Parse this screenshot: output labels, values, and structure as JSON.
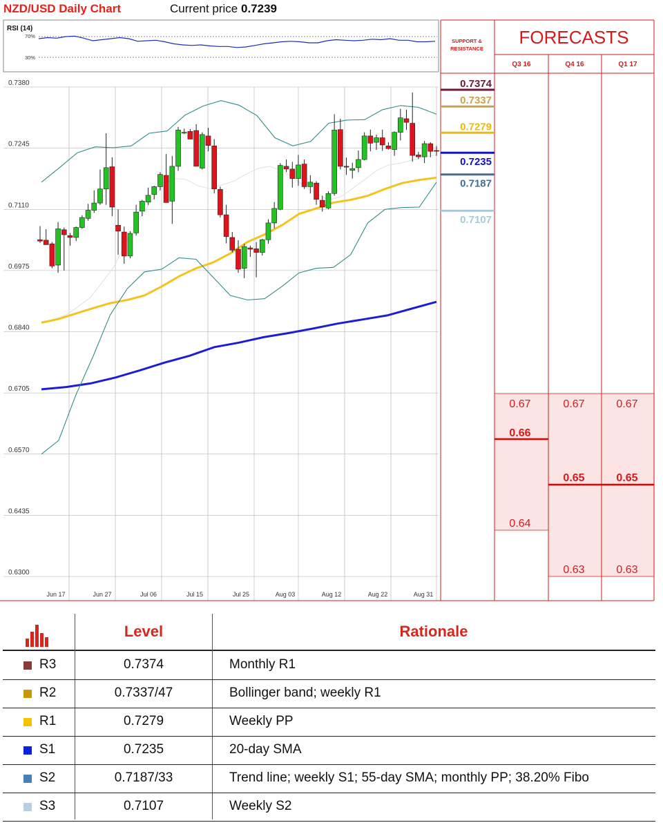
{
  "header": {
    "title": "NZD/USD Daily Chart",
    "current_price_label": "Current price",
    "current_price": "0.7239"
  },
  "rsi": {
    "label": "RSI (14)",
    "levels": [
      "70%",
      "30%"
    ]
  },
  "support_resistance_label": "SUPPORT & RESISTANCE",
  "forecasts": {
    "title": "FORECASTS",
    "columns": [
      "Q3 16",
      "Q4 16",
      "Q1 17"
    ],
    "q3_16": {
      "upper": "0.67",
      "mid": "0.66",
      "lower": "0.64"
    },
    "q4_16": {
      "upper": "0.67",
      "mid": "0.65",
      "lower": "0.63"
    },
    "q1_17": {
      "upper": "0.67",
      "mid": "0.65",
      "lower": "0.63"
    }
  },
  "sr_levels": [
    {
      "value": "0.7374",
      "color": "#6b1a3a"
    },
    {
      "value": "0.7337",
      "color": "#c9a24a"
    },
    {
      "value": "0.7279",
      "color": "#f2b800"
    },
    {
      "value": "0.7235",
      "color": "#1212c8"
    },
    {
      "value": "0.7187",
      "color": "#3d6f98"
    },
    {
      "value": "0.7107",
      "color": "#a9c9da"
    }
  ],
  "chart_data": {
    "type": "candlestick",
    "title": "NZD/USD Daily Chart",
    "y_ticks": [
      "0.7380",
      "0.7245",
      "0.7110",
      "0.6975",
      "0.6840",
      "0.6705",
      "0.6570",
      "0.6435",
      "0.6300"
    ],
    "ylim": [
      0.63,
      0.738
    ],
    "x_ticks": [
      "Jun 17",
      "Jun 27",
      "Jul 06",
      "Jul 15",
      "Jul 25",
      "Aug 03",
      "Aug 12",
      "Aug 22",
      "Aug 31"
    ],
    "grid": true,
    "candles": [
      [
        0.7043,
        0.7073,
        0.7036,
        0.704
      ],
      [
        0.7042,
        0.7066,
        0.7032,
        0.7032
      ],
      [
        0.7034,
        0.7038,
        0.698,
        0.6985
      ],
      [
        0.6987,
        0.7082,
        0.697,
        0.7067
      ],
      [
        0.7065,
        0.707,
        0.6975,
        0.7054
      ],
      [
        0.7052,
        0.7058,
        0.703,
        0.7048
      ],
      [
        0.7048,
        0.7072,
        0.704,
        0.707
      ],
      [
        0.707,
        0.7097,
        0.7067,
        0.7092
      ],
      [
        0.709,
        0.7122,
        0.7085,
        0.7108
      ],
      [
        0.7108,
        0.7152,
        0.7102,
        0.7124
      ],
      [
        0.7124,
        0.7198,
        0.712,
        0.7155
      ],
      [
        0.7155,
        0.7278,
        0.712,
        0.7202
      ],
      [
        0.7204,
        0.7225,
        0.7095,
        0.7115
      ],
      [
        0.7075,
        0.711,
        0.701,
        0.7062
      ],
      [
        0.706,
        0.7072,
        0.699,
        0.7007
      ],
      [
        0.7007,
        0.7062,
        0.7002,
        0.7057
      ],
      [
        0.7058,
        0.712,
        0.7052,
        0.7104
      ],
      [
        0.7106,
        0.7131,
        0.7095,
        0.7128
      ],
      [
        0.7126,
        0.7158,
        0.712,
        0.7141
      ],
      [
        0.7143,
        0.7162,
        0.7132,
        0.716
      ],
      [
        0.716,
        0.7192,
        0.7152,
        0.7187
      ],
      [
        0.7185,
        0.7232,
        0.7125,
        0.7125
      ],
      [
        0.7128,
        0.7228,
        0.7078,
        0.7205
      ],
      [
        0.7205,
        0.7292,
        0.7195,
        0.7285
      ],
      [
        0.728,
        0.7288,
        0.7276,
        0.728
      ],
      [
        0.7282,
        0.7287,
        0.7265,
        0.7265
      ],
      [
        0.7284,
        0.7298,
        0.7205,
        0.7205
      ],
      [
        0.7201,
        0.728,
        0.7198,
        0.7275
      ],
      [
        0.7272,
        0.729,
        0.7238,
        0.7251
      ],
      [
        0.725,
        0.7265,
        0.7145,
        0.7155
      ],
      [
        0.7154,
        0.716,
        0.7092,
        0.7098
      ],
      [
        0.7098,
        0.712,
        0.7035,
        0.705
      ],
      [
        0.7048,
        0.706,
        0.7015,
        0.702
      ],
      [
        0.7022,
        0.7042,
        0.697,
        0.6978
      ],
      [
        0.698,
        0.7034,
        0.6958,
        0.7028
      ],
      [
        0.7025,
        0.703,
        0.7005,
        0.7022
      ],
      [
        0.7023,
        0.7038,
        0.696,
        0.7015
      ],
      [
        0.7015,
        0.7045,
        0.7008,
        0.7043
      ],
      [
        0.7043,
        0.7088,
        0.7034,
        0.708
      ],
      [
        0.708,
        0.7126,
        0.7068,
        0.7112
      ],
      [
        0.711,
        0.7212,
        0.7108,
        0.7207
      ],
      [
        0.7205,
        0.722,
        0.7192,
        0.7199
      ],
      [
        0.7199,
        0.7215,
        0.7158,
        0.7178
      ],
      [
        0.7178,
        0.723,
        0.7162,
        0.7208
      ],
      [
        0.721,
        0.722,
        0.7155,
        0.716
      ],
      [
        0.716,
        0.7185,
        0.7145,
        0.717
      ],
      [
        0.7168,
        0.7172,
        0.712,
        0.7132
      ],
      [
        0.713,
        0.714,
        0.7105,
        0.7115
      ],
      [
        0.7113,
        0.715,
        0.711,
        0.7145
      ],
      [
        0.7145,
        0.732,
        0.714,
        0.7285
      ],
      [
        0.7286,
        0.731,
        0.7198,
        0.7205
      ],
      [
        0.7205,
        0.7224,
        0.7186,
        0.7204
      ],
      [
        0.7196,
        0.7213,
        0.7178,
        0.72
      ],
      [
        0.7202,
        0.724,
        0.7192,
        0.722
      ],
      [
        0.722,
        0.728,
        0.7218,
        0.7272
      ],
      [
        0.7272,
        0.7286,
        0.7238,
        0.7256
      ],
      [
        0.7258,
        0.7275,
        0.7241,
        0.7268
      ],
      [
        0.7268,
        0.7286,
        0.7239,
        0.7252
      ],
      [
        0.725,
        0.7258,
        0.7242,
        0.7244
      ],
      [
        0.7242,
        0.7282,
        0.7228,
        0.728
      ],
      [
        0.728,
        0.7332,
        0.7262,
        0.7312
      ],
      [
        0.731,
        0.733,
        0.7285,
        0.7302
      ],
      [
        0.73,
        0.7368,
        0.7215,
        0.7229
      ],
      [
        0.723,
        0.7237,
        0.7221,
        0.7226
      ],
      [
        0.7226,
        0.7261,
        0.7212,
        0.7255
      ],
      [
        0.7255,
        0.7258,
        0.7225,
        0.7238
      ],
      [
        0.724,
        0.725,
        0.7228,
        0.7239
      ]
    ],
    "series": [
      {
        "values": [
          0.686,
          0.6868,
          0.6878,
          0.6896,
          0.6916,
          0.695,
          0.6985,
          0.704,
          0.7085,
          0.7125,
          0.716,
          0.7178,
          0.7176,
          0.7162,
          0.7156,
          0.7164,
          0.7172,
          0.7187,
          0.72,
          0.7205,
          0.7195,
          0.718,
          0.716,
          0.7143,
          0.7131,
          0.7138,
          0.7157,
          0.7176,
          0.7196,
          0.7208,
          0.7212,
          0.7219,
          0.7226,
          0.723
        ]
      },
      {
        "values": [
          0.686,
          0.6868,
          0.688,
          0.6892,
          0.6903,
          0.691,
          0.692,
          0.694,
          0.6962,
          0.698,
          0.6993,
          0.7013,
          0.7038,
          0.7055,
          0.7075,
          0.71,
          0.7112,
          0.7125,
          0.7131,
          0.714,
          0.7155,
          0.7168,
          0.7175,
          0.718
        ]
      },
      {
        "values": [
          0.6713,
          0.6718,
          0.6726,
          0.6739,
          0.6755,
          0.6772,
          0.6787,
          0.6806,
          0.6816,
          0.6828,
          0.6837,
          0.6847,
          0.6858,
          0.6867,
          0.6876,
          0.6891,
          0.6906
        ]
      },
      {
        "values": [
          0.717,
          0.7202,
          0.7235,
          0.7248,
          0.7246,
          0.725,
          0.7278,
          0.7283,
          0.7318,
          0.7338,
          0.735,
          0.734,
          0.7317,
          0.7268,
          0.725,
          0.726,
          0.73,
          0.7307,
          0.7308,
          0.733,
          0.7339,
          0.7335,
          0.732
        ]
      },
      {
        "values": [
          0.657,
          0.66,
          0.67,
          0.6785,
          0.6877,
          0.6935,
          0.6972,
          0.6978,
          0.7003,
          0.7,
          0.696,
          0.692,
          0.691,
          0.6913,
          0.694,
          0.697,
          0.698,
          0.6982,
          0.701,
          0.708,
          0.711,
          0.7114,
          0.7115,
          0.717
        ]
      }
    ],
    "rsi": [
      66,
      68,
      67,
      70,
      71,
      67,
      62,
      64,
      66,
      68,
      66,
      61,
      62,
      63,
      60,
      56,
      54,
      53,
      54,
      52,
      51,
      51,
      49,
      50,
      53,
      56,
      58,
      60,
      61,
      60,
      58,
      58,
      62,
      64,
      63,
      62,
      63,
      65,
      64,
      66,
      63,
      63,
      60,
      60,
      61
    ]
  },
  "table": {
    "headers": {
      "level": "Level",
      "rationale": "Rationale"
    },
    "rows": [
      {
        "label": "R3",
        "level": "0.7374",
        "rationale": "Monthly R1",
        "color": "#8b3a3a"
      },
      {
        "label": "R2",
        "level": "0.7337/47",
        "rationale": "Bollinger band; weekly R1",
        "color": "#c9980a"
      },
      {
        "label": "R1",
        "level": "0.7279",
        "rationale": "Weekly PP",
        "color": "#f2c300"
      },
      {
        "label": "S1",
        "level": "0.7235",
        "rationale": "20-day SMA",
        "color": "#0a22d9"
      },
      {
        "label": "S2",
        "level": "0.7187/33",
        "rationale": "Trend line; weekly S1; 55-day SMA; monthly PP; 38.20% Fibo",
        "color": "#4a7fb5"
      },
      {
        "label": "S3",
        "level": "0.7107",
        "rationale": "Weekly S2",
        "color": "#b9cfe6"
      }
    ]
  }
}
